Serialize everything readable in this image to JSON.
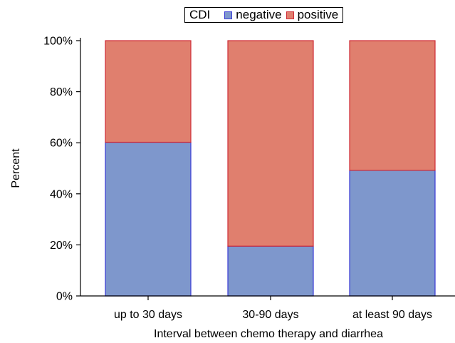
{
  "chart_data": {
    "type": "bar",
    "stacked": true,
    "normalized": true,
    "title": "",
    "xlabel": "Interval between chemo therapy and diarrhea",
    "ylabel": "Percent",
    "categories": [
      "up to 30 days",
      "30-90 days",
      "at least 90 days"
    ],
    "series": [
      {
        "name": "negative",
        "values": [
          60.2,
          19.5,
          49.2
        ],
        "color": "#7e97cc",
        "edge": "#3a3ad6"
      },
      {
        "name": "positive",
        "values": [
          39.8,
          80.5,
          50.8
        ],
        "color": "#e07f6e",
        "edge": "#cf2b36"
      }
    ],
    "ylim": [
      0,
      100
    ],
    "yticks": [
      "0%",
      "20%",
      "40%",
      "60%",
      "80%",
      "100%"
    ],
    "ytick_values": [
      0,
      20,
      40,
      60,
      80,
      100
    ],
    "legend": {
      "title": "CDI",
      "placement": "top-center"
    },
    "grid": false
  }
}
